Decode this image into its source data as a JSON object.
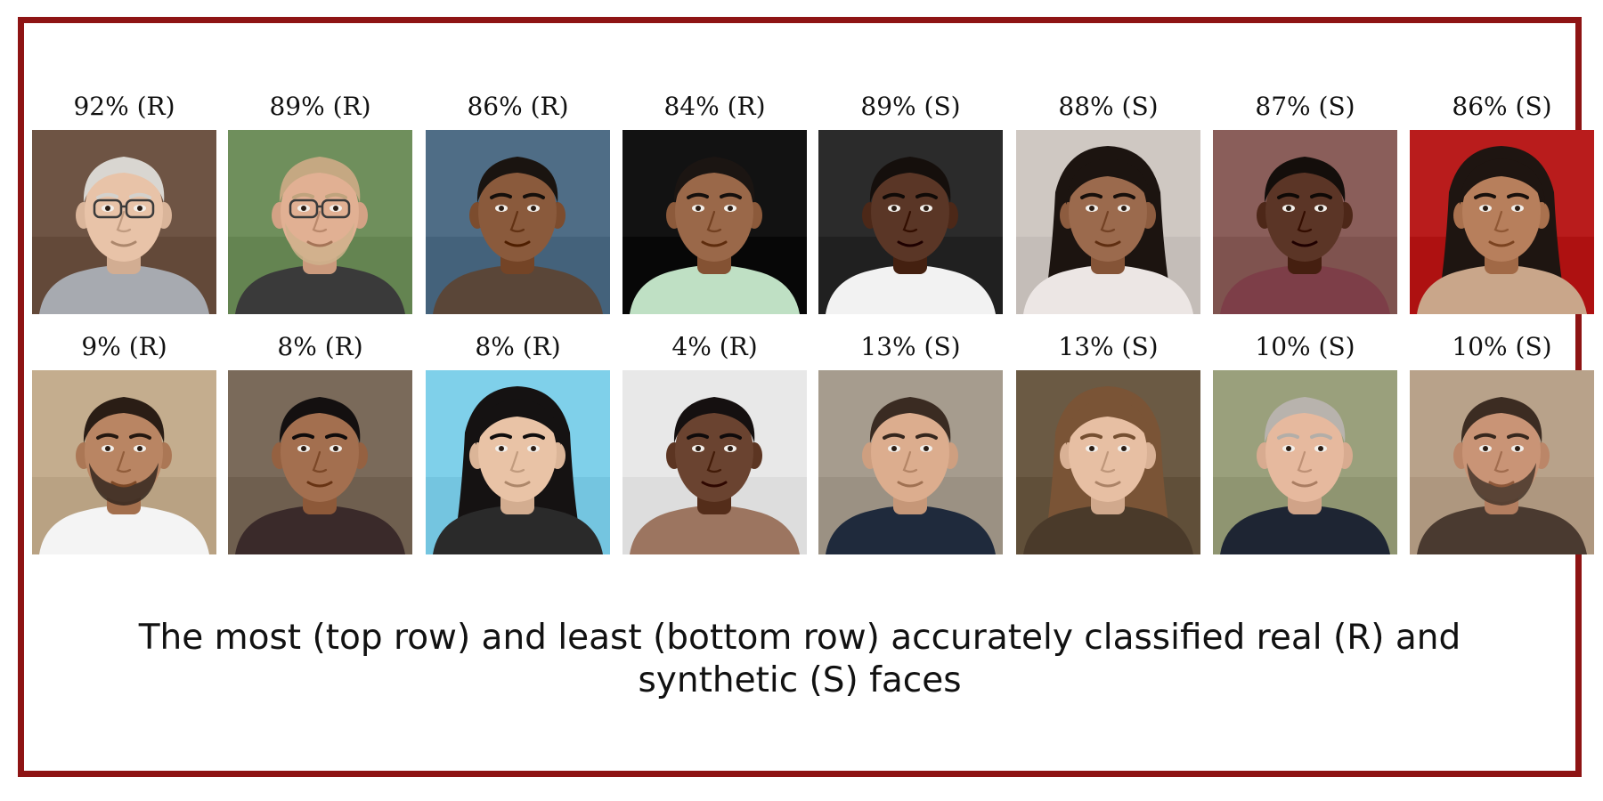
{
  "figure": {
    "top_row": [
      {
        "label": "92% (R)",
        "skin": "#e8c3a8",
        "hair": "#d9d6d1",
        "bg": "#6e5444",
        "shirt": "#a7aab0",
        "glasses": true,
        "beard": false,
        "long_hair": false
      },
      {
        "label": "89% (R)",
        "skin": "#e1b093",
        "hair": "#c5a882",
        "bg": "#6f8f5c",
        "shirt": "#3a3a3a",
        "glasses": true,
        "beard": true,
        "long_hair": false
      },
      {
        "label": "86% (R)",
        "skin": "#8a5a3c",
        "hair": "#1a1410",
        "bg": "#4f6d86",
        "shirt": "#5a4638",
        "glasses": false,
        "beard": false,
        "long_hair": false
      },
      {
        "label": "84% (R)",
        "skin": "#9a6849",
        "hair": "#1b1512",
        "bg": "#121212",
        "shirt": "#bfe0c4",
        "glasses": false,
        "beard": false,
        "long_hair": false
      },
      {
        "label": "89% (S)",
        "skin": "#5a3626",
        "hair": "#150f0c",
        "bg": "#2b2b2b",
        "shirt": "#f2f2f2",
        "glasses": false,
        "beard": false,
        "long_hair": false
      },
      {
        "label": "88% (S)",
        "skin": "#9b6a4d",
        "hair": "#1c1410",
        "bg": "#cfc8c2",
        "shirt": "#ece6e4",
        "glasses": false,
        "beard": false,
        "long_hair": true
      },
      {
        "label": "87% (S)",
        "skin": "#5b3526",
        "hair": "#140e0b",
        "bg": "#8a5e5a",
        "shirt": "#7d3e48",
        "glasses": false,
        "beard": false,
        "long_hair": false
      },
      {
        "label": "86% (S)",
        "skin": "#b77f5c",
        "hair": "#1e1511",
        "bg": "#b91c1c",
        "shirt": "#c9a68a",
        "glasses": false,
        "beard": false,
        "long_hair": true
      }
    ],
    "bottom_row": [
      {
        "label": "9% (R)",
        "skin": "#b98563",
        "hair": "#2a1d15",
        "bg": "#c4ad8e",
        "shirt": "#f4f4f4",
        "glasses": false,
        "beard": true,
        "long_hair": false
      },
      {
        "label": "8% (R)",
        "skin": "#a36f4f",
        "hair": "#141010",
        "bg": "#7a6a5a",
        "shirt": "#3a2a2a",
        "glasses": false,
        "beard": false,
        "long_hair": false
      },
      {
        "label": "8% (R)",
        "skin": "#e9c3a6",
        "hair": "#151212",
        "bg": "#7fd0ea",
        "shirt": "#2a2a2a",
        "glasses": false,
        "beard": false,
        "long_hair": true
      },
      {
        "label": "4% (R)",
        "skin": "#6a4330",
        "hair": "#151010",
        "bg": "#e8e8e8",
        "shirt": "#9c7560",
        "glasses": false,
        "beard": false,
        "long_hair": false
      },
      {
        "label": "13% (S)",
        "skin": "#dcad8e",
        "hair": "#3a2b22",
        "bg": "#a69c8e",
        "shirt": "#1f2a3c",
        "glasses": false,
        "beard": false,
        "long_hair": false
      },
      {
        "label": "13% (S)",
        "skin": "#e7bfa3",
        "hair": "#7a5436",
        "bg": "#6b5a44",
        "shirt": "#4a3a2a",
        "glasses": false,
        "beard": false,
        "long_hair": true
      },
      {
        "label": "10% (S)",
        "skin": "#e6b99e",
        "hair": "#b8b3ad",
        "bg": "#9aa07c",
        "shirt": "#1e2533",
        "glasses": false,
        "beard": false,
        "long_hair": false
      },
      {
        "label": "10% (S)",
        "skin": "#c99476",
        "hair": "#3c2c22",
        "bg": "#b8a28a",
        "shirt": "#4a3a30",
        "glasses": false,
        "beard": true,
        "long_hair": false
      }
    ]
  },
  "caption": "The most (top row) and least (bottom row) accurately classified real (R) and synthetic (S) faces"
}
